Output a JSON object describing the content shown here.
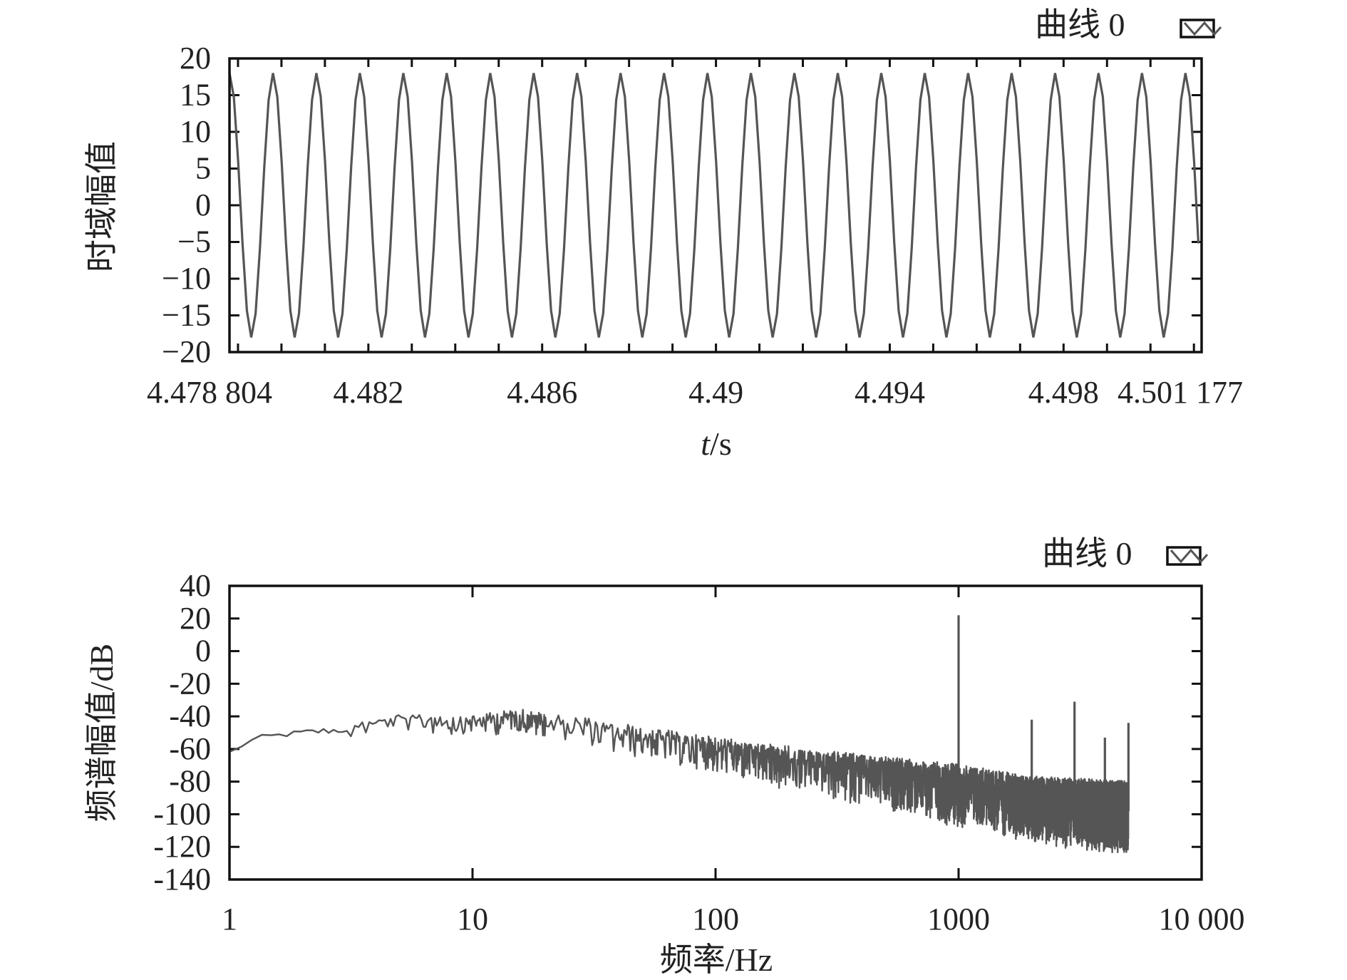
{
  "colors": {
    "line": "#555555",
    "frame": "#111111",
    "text": "#222222",
    "background": "#ffffff"
  },
  "chart_data": [
    {
      "type": "line",
      "xlabel_italic": "t",
      "xlabel_rest": "/s",
      "ylabel": "时域幅值",
      "xlim": [
        4.478804,
        4.501177
      ],
      "ylim": [
        -20,
        20
      ],
      "x_ticks": [
        4.482,
        4.486,
        4.49,
        4.494,
        4.498
      ],
      "x_tick_labels": [
        "4.482",
        "4.486",
        "4.49",
        "4.494",
        "4.498"
      ],
      "x_edge_labels": [
        "4.478 804",
        "4.501 177"
      ],
      "y_ticks": [
        20,
        15,
        10,
        5,
        0,
        -5,
        -10,
        -15,
        -20
      ],
      "y_tick_labels": [
        "20",
        "15",
        "10",
        "5",
        "0",
        "−5",
        "−10",
        "−15",
        "−20"
      ],
      "legend": {
        "label": "曲线 0",
        "position": "top-right"
      },
      "series": [
        {
          "amplitude": 18,
          "frequency_hz": 1000,
          "samples_per_second": 10000,
          "values_note": "sampled sine wave"
        }
      ]
    },
    {
      "type": "line",
      "xlabel": "频率/Hz",
      "ylabel": "频谱幅值/dB",
      "x_scale": "log",
      "xlim": [
        1,
        10000
      ],
      "ylim": [
        -140,
        40
      ],
      "x_ticks": [
        1,
        10,
        100,
        1000,
        10000
      ],
      "x_tick_labels": [
        "1",
        "10",
        "100",
        "1000",
        "10 000"
      ],
      "y_ticks": [
        40,
        20,
        0,
        -20,
        -40,
        -60,
        -80,
        -100,
        -120,
        -140
      ],
      "y_tick_labels": [
        "40",
        "20",
        "0",
        "-20",
        "-40",
        "-60",
        "-80",
        "-100",
        "-120",
        "-140"
      ],
      "legend": {
        "label": "曲线 0",
        "position": "top-right"
      },
      "spectrum": {
        "x_max": 5000,
        "trend": [
          [
            1,
            -62
          ],
          [
            1.3,
            -53
          ],
          [
            2,
            -50
          ],
          [
            3,
            -48
          ],
          [
            5,
            -42
          ],
          [
            10,
            -43
          ],
          [
            15,
            -40
          ],
          [
            30,
            -47
          ],
          [
            100,
            -60
          ],
          [
            300,
            -70
          ],
          [
            1000,
            -80
          ],
          [
            2000,
            -88
          ],
          [
            5000,
            -92
          ]
        ],
        "noise_depth": [
          [
            1,
            2
          ],
          [
            10,
            8
          ],
          [
            100,
            15
          ],
          [
            1000,
            25
          ],
          [
            5000,
            30
          ]
        ],
        "peaks": [
          {
            "x": 1000,
            "y": 22
          },
          {
            "x": 2000,
            "y": -42
          },
          {
            "x": 3000,
            "y": -31
          },
          {
            "x": 4000,
            "y": -53
          },
          {
            "x": 5000,
            "y": -44
          }
        ]
      }
    }
  ]
}
